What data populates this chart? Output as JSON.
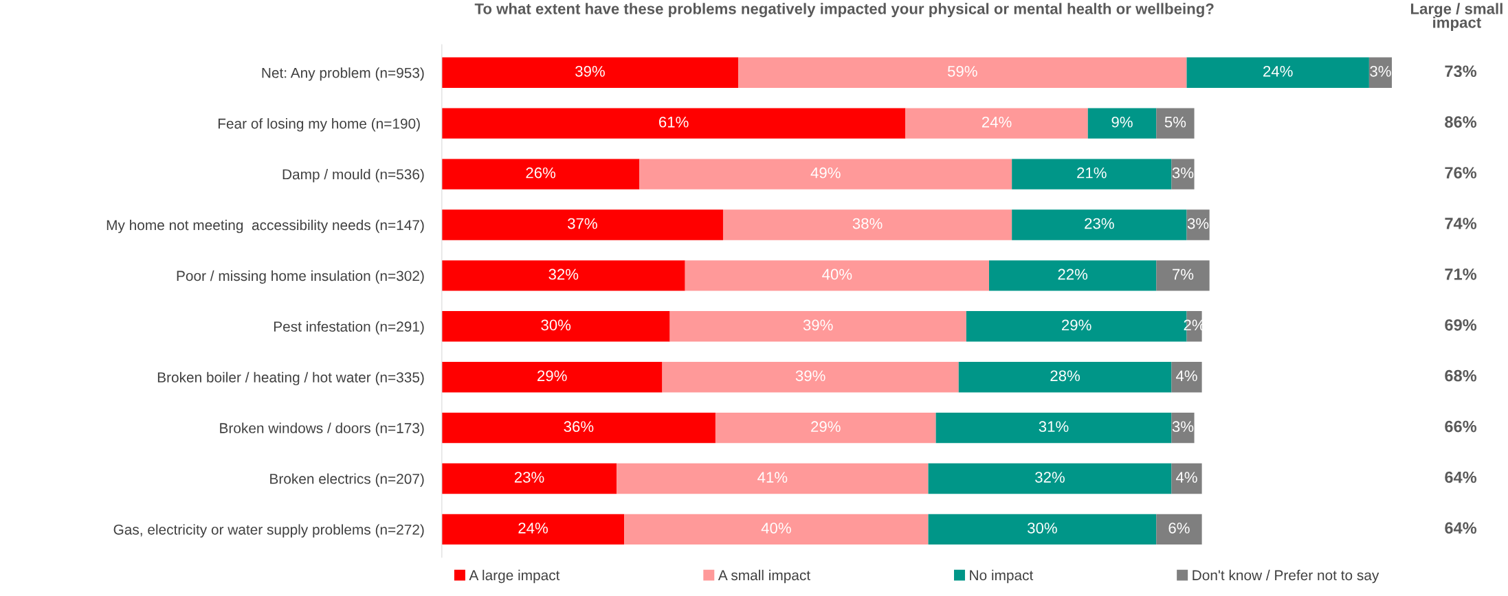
{
  "chart_data": {
    "type": "bar",
    "orientation": "horizontal",
    "stacked": true,
    "title": "To what extent have these problems negatively impacted your physical or mental health or wellbeing?",
    "categories": [
      "Net: Any problem (n=953)",
      "Fear of losing my home (n=190) ",
      "Damp / mould (n=536)",
      "My home not meeting  accessibility needs (n=147)",
      "Poor / missing home insulation (n=302)",
      "Pest infestation (n=291)",
      "Broken boiler / heating / hot water (n=335)",
      "Broken windows / doors (n=173)",
      "Broken electrics (n=207)",
      "Gas, electricity or water supply problems (n=272)"
    ],
    "series": [
      {
        "name": "A large impact",
        "color": "#ff0000",
        "values": [
          39,
          61,
          26,
          37,
          32,
          30,
          29,
          36,
          23,
          24
        ],
        "value_labels": [
          "39%",
          "61%",
          "26%",
          "37%",
          "32%",
          "30%",
          "29%",
          "36%",
          "23%",
          "24%"
        ]
      },
      {
        "name": "A small impact",
        "color": "#ff9999",
        "values": [
          59,
          24,
          49,
          38,
          40,
          39,
          39,
          29,
          41,
          40
        ],
        "value_labels": [
          "59%",
          "24%",
          "49%",
          "38%",
          "40%",
          "39%",
          "39%",
          "29%",
          "41%",
          "40%"
        ]
      },
      {
        "name": "No impact",
        "color": "#009688",
        "values": [
          24,
          9,
          21,
          23,
          22,
          29,
          28,
          31,
          32,
          30
        ],
        "value_labels": [
          "24%",
          "9%",
          "21%",
          "23%",
          "22%",
          "29%",
          "28%",
          "31%",
          "32%",
          "30%"
        ]
      },
      {
        "name": "Don't know / Prefer not to say",
        "color": "#7f7f7f",
        "values": [
          3,
          5,
          3,
          3,
          7,
          2,
          4,
          3,
          4,
          6
        ],
        "value_labels": [
          "3%",
          "5%",
          "3%",
          "3%",
          "7%",
          "2%",
          "4%",
          "3%",
          "4%",
          "6%"
        ]
      }
    ],
    "annotations": [
      "Large / small\nimpact",
      "73%",
      "86%",
      "76%",
      "74%",
      "71%",
      "69%",
      "68%",
      "66%",
      "64%",
      "64%"
    ],
    "legend": "bottom",
    "grid": false
  }
}
